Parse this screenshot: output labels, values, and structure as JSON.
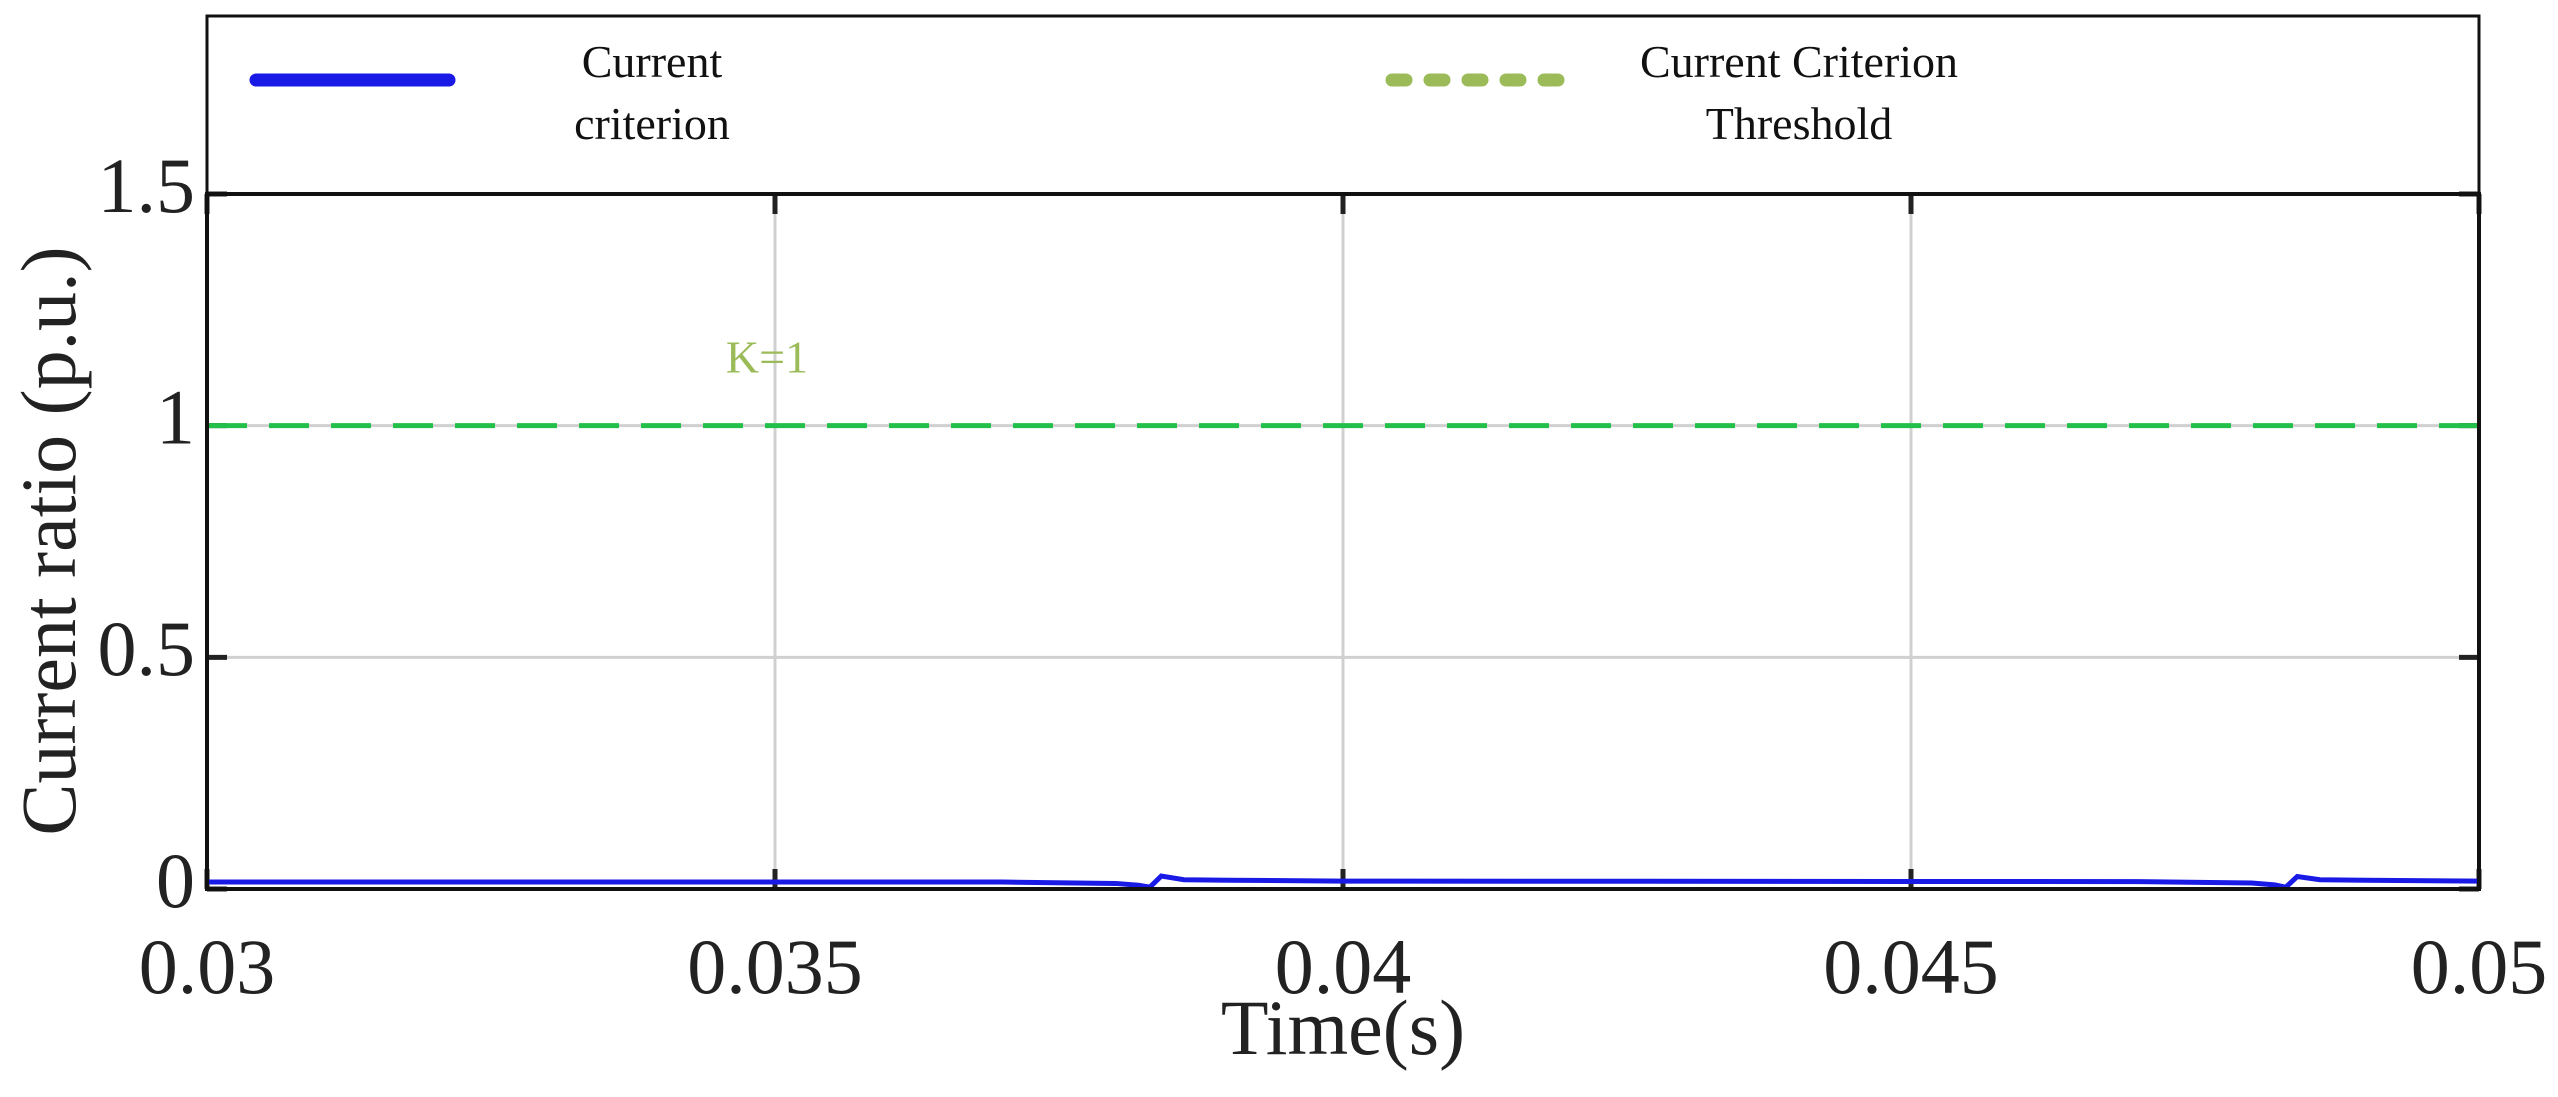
{
  "chart_data": {
    "type": "line",
    "x_label": "Time(s)",
    "y_label": "Current ratio (p.u.)",
    "x": [
      0.03,
      0.037,
      0.038,
      0.0382,
      0.0383,
      0.0384,
      0.0386,
      0.039,
      0.04,
      0.047,
      0.048,
      0.0482,
      0.0483,
      0.0484,
      0.0486,
      0.049,
      0.05
    ],
    "series": [
      {
        "name": "Current criterion",
        "color": "#1a1ae6",
        "line_style": "solid",
        "values": [
          0.015,
          0.015,
          0.012,
          0.008,
          0.004,
          0.028,
          0.02,
          0.019,
          0.017,
          0.016,
          0.013,
          0.009,
          0.004,
          0.027,
          0.02,
          0.019,
          0.017
        ]
      },
      {
        "name": "Current Criterion Threshold",
        "color": "#22c04a",
        "legend_color": "#9bbb59",
        "line_style": "dashed",
        "values": [
          1,
          1,
          1,
          1,
          1,
          1,
          1,
          1,
          1,
          1,
          1,
          1,
          1,
          1,
          1,
          1,
          1
        ]
      }
    ],
    "annotations": [
      {
        "text": "K=1",
        "color": "#9bbb59"
      }
    ],
    "xlim": [
      0.03,
      0.05
    ],
    "xticks": [
      0.03,
      0.035,
      0.04,
      0.045,
      0.05
    ],
    "ylim": [
      0,
      1.5
    ],
    "yticks": [
      0,
      0.5,
      1,
      1.5
    ],
    "grid": true
  }
}
